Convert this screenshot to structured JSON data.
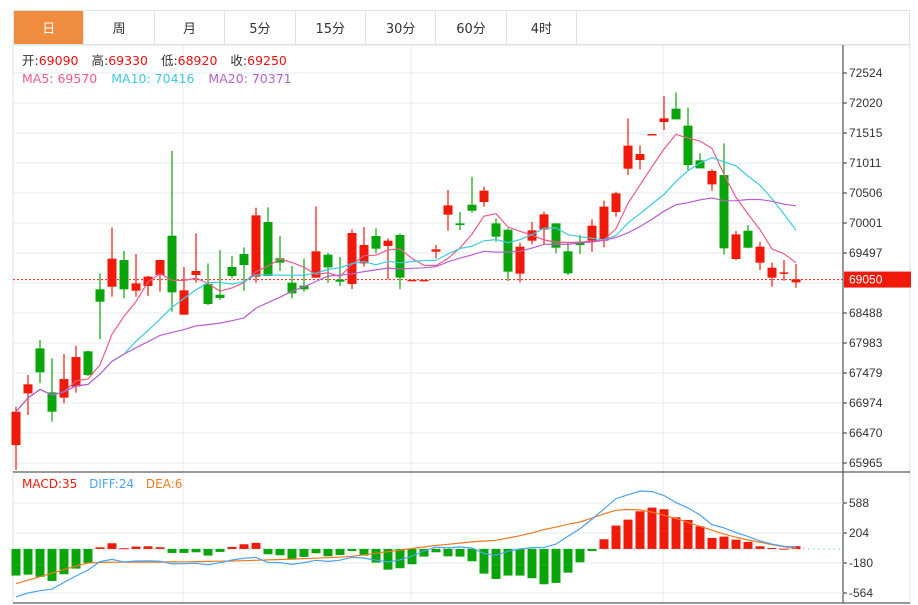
{
  "tabs": [
    "日",
    "周",
    "月",
    "5分",
    "15分",
    "30分",
    "60分",
    "4时"
  ],
  "active_tab": 0,
  "ohlc_info": {
    "open_label": "开:",
    "open": "69090",
    "high_label": "高:",
    "high": "69330",
    "low_label": "低:",
    "low": "68920",
    "close_label": "收:",
    "close": "69250"
  },
  "ma_info": {
    "ma5": "MA5: 69570",
    "ma10": "MA10: 70416",
    "ma20": "MA20: 70371"
  },
  "macd_info": {
    "macd": "MACD:35",
    "diff": "DIFF:24",
    "dea": "DEA:6"
  },
  "colors": {
    "up": "#f01a0a",
    "down": "#0aa50a",
    "ma5": "#ee5a8a",
    "ma10": "#3ccbe0",
    "ma20": "#b860cc",
    "accent": "#f08c3f",
    "diff": "#4aa3f0",
    "dea": "#f07a20"
  },
  "chart_data": {
    "type": "candlestick",
    "price_axis": {
      "ticks": [
        "72524",
        "72020",
        "71515",
        "71011",
        "70506",
        "70001",
        "69497",
        "68488",
        "67983",
        "67479",
        "66974",
        "66470",
        "65965"
      ],
      "range": [
        65965,
        72524
      ]
    },
    "current_price": "69050",
    "candles": [
      [
        66267,
        66912,
        65847,
        66828
      ],
      [
        67136,
        67445,
        66772,
        67288
      ],
      [
        67893,
        68033,
        67305,
        67490
      ],
      [
        67153,
        67725,
        66660,
        66828
      ],
      [
        67064,
        67798,
        66968,
        67377
      ],
      [
        67249,
        67938,
        67148,
        67747
      ],
      [
        67843,
        67854,
        67428,
        67445
      ],
      [
        68886,
        69155,
        68050,
        68678
      ],
      [
        68930,
        69928,
        68762,
        69401
      ],
      [
        69379,
        69530,
        68734,
        68886
      ],
      [
        68863,
        69480,
        68762,
        68986
      ],
      [
        68942,
        69110,
        68773,
        69099
      ],
      [
        69127,
        69379,
        68846,
        69379
      ],
      [
        69788,
        71212,
        68510,
        68835
      ],
      [
        68459,
        69261,
        68459,
        68869
      ],
      [
        69127,
        69827,
        68998,
        69194
      ],
      [
        68975,
        69323,
        68622,
        68639
      ],
      [
        68796,
        69547,
        68706,
        68740
      ],
      [
        69261,
        69446,
        69071,
        69110
      ],
      [
        69480,
        69592,
        68863,
        69295
      ],
      [
        69099,
        70259,
        68998,
        70130
      ],
      [
        70018,
        70265,
        69110,
        69110
      ],
      [
        69407,
        69782,
        69194,
        69334
      ],
      [
        68998,
        69278,
        68734,
        68818
      ],
      [
        68947,
        69401,
        68846,
        68886
      ],
      [
        69082,
        70281,
        69082,
        69525
      ],
      [
        69469,
        69502,
        68998,
        69255
      ],
      [
        69048,
        69429,
        68942,
        69014
      ],
      [
        68975,
        69895,
        68891,
        69833
      ],
      [
        69323,
        69934,
        69267,
        69631
      ],
      [
        69782,
        69911,
        69491,
        69569
      ],
      [
        69614,
        69743,
        69054,
        69704
      ],
      [
        69799,
        69827,
        68891,
        69082
      ],
      [
        69045,
        69045,
        69045,
        69045
      ],
      [
        69045,
        69045,
        69045,
        69045
      ],
      [
        69519,
        69631,
        69407,
        69558
      ],
      [
        70141,
        70556,
        69872,
        70298
      ],
      [
        69995,
        70186,
        69883,
        69967
      ],
      [
        70309,
        70780,
        70175,
        70208
      ],
      [
        70354,
        70612,
        70276,
        70545
      ],
      [
        69995,
        70080,
        69687,
        69771
      ],
      [
        69889,
        69911,
        69026,
        69183
      ],
      [
        69149,
        69670,
        69003,
        69603
      ],
      [
        69704,
        70018,
        69642,
        69878
      ],
      [
        69894,
        70192,
        69631,
        70147
      ],
      [
        69995,
        69995,
        69491,
        69586
      ],
      [
        69525,
        69670,
        69126,
        69155
      ],
      [
        69687,
        69799,
        69480,
        69631
      ],
      [
        69704,
        70063,
        69519,
        69956
      ],
      [
        69704,
        70377,
        69592,
        70276
      ],
      [
        70186,
        70528,
        70108,
        70500
      ],
      [
        70915,
        71761,
        70808,
        71302
      ],
      [
        71061,
        71307,
        70904,
        71161
      ],
      [
        71498,
        71498,
        71498,
        71498
      ],
      [
        71700,
        72137,
        71565,
        71761
      ],
      [
        71924,
        72199,
        71744,
        71744
      ],
      [
        71638,
        71941,
        70892,
        70976
      ],
      [
        71055,
        71173,
        70920,
        70920
      ],
      [
        70651,
        70904,
        70545,
        70876
      ],
      [
        70808,
        71341,
        69474,
        69575
      ],
      [
        69396,
        69866,
        69379,
        69810
      ],
      [
        69872,
        69967,
        69575,
        69586
      ],
      [
        69334,
        69687,
        69211,
        69603
      ],
      [
        69082,
        69334,
        68930,
        69250
      ],
      [
        69155,
        69379,
        69031,
        69171
      ],
      [
        69003,
        69311,
        68913,
        69054
      ]
    ],
    "candle_fields": [
      "open",
      "high",
      "low",
      "close"
    ],
    "ma_periods": [
      5,
      10,
      20
    ],
    "macd": {
      "axis_ticks": [
        "588",
        "204",
        "-180",
        "-564"
      ],
      "range": [
        -564,
        588
      ],
      "histogram": [
        -341,
        -329,
        -358,
        -410,
        -324,
        -252,
        -179,
        21,
        73,
        9,
        30,
        34,
        21,
        -51,
        -51,
        -43,
        -85,
        -38,
        26,
        60,
        77,
        -68,
        -81,
        -137,
        -102,
        -55,
        -94,
        -77,
        -26,
        -85,
        -175,
        -265,
        -247,
        -196,
        -98,
        -43,
        -94,
        -98,
        -158,
        -316,
        -384,
        -341,
        -341,
        -375,
        -452,
        -435,
        -303,
        -171,
        -26,
        124,
        299,
        375,
        482,
        529,
        508,
        405,
        371,
        290,
        141,
        158,
        119,
        90,
        34,
        13,
        4,
        35
      ],
      "dea": [
        -444,
        -400,
        -355,
        -310,
        -265,
        -220,
        -180,
        -172,
        -170,
        -170,
        -170,
        -170,
        -168,
        -166,
        -164,
        -162,
        -160,
        -157,
        -154,
        -150,
        -145,
        -140,
        -135,
        -130,
        -124,
        -118,
        -112,
        -106,
        -94,
        -75,
        -55,
        -35,
        -15,
        5,
        25,
        45,
        60,
        75,
        90,
        100,
        111,
        140,
        170,
        205,
        247,
        280,
        315,
        345,
        395,
        450,
        495,
        505,
        500,
        470,
        430,
        390,
        340,
        290,
        240,
        190,
        150,
        115,
        85,
        55,
        30,
        6
      ]
    }
  }
}
